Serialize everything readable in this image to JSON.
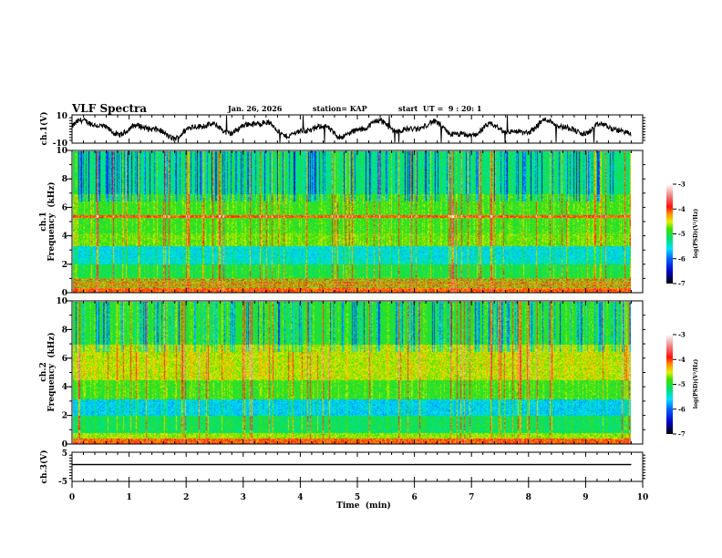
{
  "chart_data": [
    {
      "type": "line",
      "panel": "ch1-waveform",
      "title": "VLF Spectra",
      "date": "Jan. 26, 2026",
      "station": "station= KAP",
      "start_ut": "start  UT =  9 : 20: 1",
      "ylabel": "ch.1(V)",
      "ylim": [
        -10,
        10
      ],
      "yticks": [
        "10",
        "-10"
      ],
      "xlim": [
        0,
        10
      ],
      "data_end_min": 9.8,
      "series": [
        {
          "name": "ch.1",
          "color": "#000000"
        }
      ]
    },
    {
      "type": "heatmap",
      "panel": "ch1-spectrogram",
      "ylabel_line1": "ch.1",
      "ylabel_line2": "Frequency  (kHz)",
      "ylim": [
        0,
        10
      ],
      "yticks": [
        "0",
        "2",
        "4",
        "6",
        "8",
        "10"
      ],
      "xlim": [
        0,
        10
      ],
      "colorbar": {
        "label": "log(PSD)(V²/Hz)",
        "range": [
          -7,
          -3
        ],
        "ticks": [
          "-3",
          "-4",
          "-5",
          "-6",
          "-7"
        ]
      }
    },
    {
      "type": "heatmap",
      "panel": "ch2-spectrogram",
      "ylabel_line1": "ch.2",
      "ylabel_line2": "Frequency  (kHz)",
      "ylim": [
        0,
        10
      ],
      "yticks": [
        "0",
        "2",
        "4",
        "6",
        "8",
        "10"
      ],
      "xlim": [
        0,
        10
      ],
      "colorbar": {
        "label": "log(PSD)(V²/Hz)",
        "range": [
          -7,
          -3
        ],
        "ticks": [
          "-3",
          "-4",
          "-5",
          "-6",
          "-7"
        ]
      }
    },
    {
      "type": "line",
      "panel": "ch3-waveform",
      "ylabel": "ch.3(V)",
      "ylim": [
        -5,
        5
      ],
      "yticks": [
        "5",
        "-5"
      ],
      "band": [
        0.55,
        1.0
      ],
      "xlim": [
        0,
        10
      ],
      "xlabel": "Time  (min)",
      "xticks": [
        "0",
        "1",
        "2",
        "3",
        "4",
        "5",
        "6",
        "7",
        "8",
        "9",
        "10"
      ],
      "data_end_min": 9.8
    }
  ]
}
